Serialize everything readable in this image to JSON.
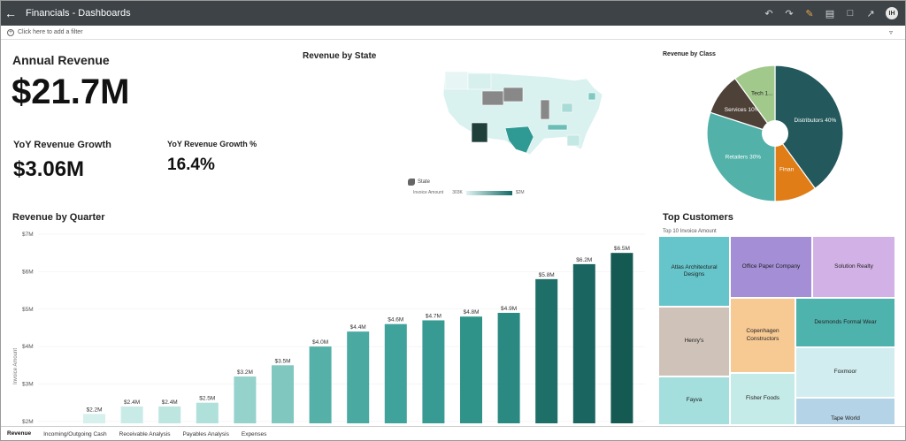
{
  "window": {
    "title": "Financials - Dashboards"
  },
  "toolbar": {
    "icons": [
      "undo-icon",
      "redo-icon",
      "edit-icon",
      "save-icon",
      "comment-icon",
      "export-icon"
    ],
    "avatar_initials": "IH"
  },
  "filterbar": {
    "placeholder": "Click here to add a filter"
  },
  "kpis": {
    "annual_revenue": {
      "title": "Annual Revenue",
      "value": "$21.7M"
    },
    "yoy_growth": {
      "title": "YoY Revenue Growth",
      "value": "$3.06M"
    },
    "yoy_growth_pct": {
      "title": "YoY Revenue Growth %",
      "value": "16.4%"
    }
  },
  "map": {
    "title": "Revenue by State",
    "legend_state": "State",
    "legend_measure": "Invoice Amount",
    "legend_min": "303K",
    "legend_max": "$2M"
  },
  "pie": {
    "title": "Revenue by Class",
    "slices": [
      {
        "label": "Distributors 40%",
        "value": 40,
        "color": "#23585c"
      },
      {
        "label": "Finan",
        "value": 10,
        "color": "#e07d16"
      },
      {
        "label": "Retailers 30%",
        "value": 30,
        "color": "#52b1a9"
      },
      {
        "label": "Services 10%",
        "value": 10,
        "color": "#4e4138"
      },
      {
        "label": "Tech 1...",
        "value": 10,
        "color": "#a2c98c"
      }
    ]
  },
  "chart_data": {
    "type": "bar",
    "title": "Revenue by Quarter",
    "ylabel": "Invoice Amount",
    "ylim": [
      1.95,
      7
    ],
    "yticks": [
      2,
      3,
      4,
      5,
      6,
      7
    ],
    "ytick_labels": [
      "$2M",
      "$3M",
      "$4M",
      "$5M",
      "$6M",
      "$7M"
    ],
    "values": [
      2.2,
      2.4,
      2.4,
      2.5,
      3.2,
      3.5,
      4.0,
      4.4,
      4.6,
      4.7,
      4.8,
      4.9,
      5.8,
      6.2,
      6.5
    ],
    "data_labels": [
      "$2.2M",
      "$2.4M",
      "$2.4M",
      "$2.5M",
      "$3.2M",
      "$3.5M",
      "$4.0M",
      "$4.4M",
      "$4.6M",
      "$4.7M",
      "$4.8M",
      "$4.9M",
      "$5.8M",
      "$6.2M",
      "$6.5M"
    ],
    "colors": [
      "#d6f0ed",
      "#c9ebe7",
      "#bde6e1",
      "#b0e0da",
      "#95d2cb",
      "#80c7bf",
      "#55b0a8",
      "#4aa9a1",
      "#40a39b",
      "#389b93",
      "#309389",
      "#2a8a82",
      "#1e6f68",
      "#1a6560",
      "#155953"
    ]
  },
  "treemap": {
    "title": "Top Customers",
    "subtitle": "Top 10 Invoice Amount",
    "cells": [
      {
        "label": "Atlas Architectural Designs",
        "color": "#66c5cb"
      },
      {
        "label": "Office Paper Company",
        "color": "#a48ed6"
      },
      {
        "label": "Solution Realty",
        "color": "#d2b2e6"
      },
      {
        "label": "Henry's",
        "color": "#cfc2b8"
      },
      {
        "label": "Copenhagen Constructors",
        "color": "#f7c993"
      },
      {
        "label": "Desmonds Formal Wear",
        "color": "#4fb3ad"
      },
      {
        "label": "Foxmoor",
        "color": "#d2edf0"
      },
      {
        "label": "Fayva",
        "color": "#a4dedd"
      },
      {
        "label": "Fisher Foods",
        "color": "#c5ebe8"
      },
      {
        "label": "Tape World",
        "color": "#b5d3e6"
      }
    ]
  },
  "tabs": [
    "Revenue",
    "Incoming/Outgoing Cash",
    "Receivable Analysis",
    "Payables Analysis",
    "Expenses"
  ]
}
